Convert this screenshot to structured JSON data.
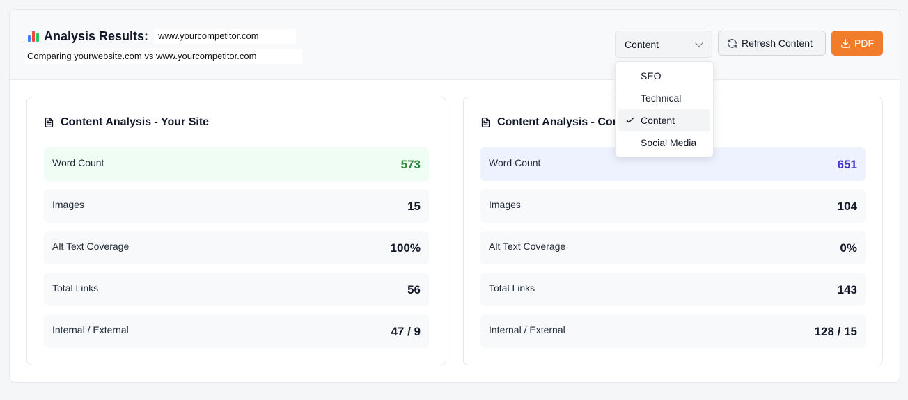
{
  "header": {
    "title": "Analysis Results:",
    "title_url": "www.yourcompetitor.com",
    "subtitle": "Comparing yourwebsite.com vs www.yourcompetitor.com",
    "title_icon": "bar-chart-icon"
  },
  "toolbar": {
    "select_value": "Content",
    "refresh_label": "Refresh Content",
    "pdf_label": "PDF",
    "accent_color": "#f07c2c"
  },
  "dropdown": {
    "options": [
      {
        "label": "SEO",
        "selected": false
      },
      {
        "label": "Technical",
        "selected": false
      },
      {
        "label": "Content",
        "selected": true
      },
      {
        "label": "Social Media",
        "selected": false
      }
    ]
  },
  "panels": [
    {
      "title": "Content Analysis - Your Site",
      "rows": [
        {
          "label": "Word Count",
          "value": "573"
        },
        {
          "label": "Images",
          "value": "15"
        },
        {
          "label": "Alt Text Coverage",
          "value": "100%"
        },
        {
          "label": "Total Links",
          "value": "56"
        },
        {
          "label": "Internal / External",
          "value": "47 / 9"
        }
      ]
    },
    {
      "title": "Content Analysis - Competitor",
      "rows": [
        {
          "label": "Word Count",
          "value": "651"
        },
        {
          "label": "Images",
          "value": "104"
        },
        {
          "label": "Alt Text Coverage",
          "value": "0%"
        },
        {
          "label": "Total Links",
          "value": "143"
        },
        {
          "label": "Internal / External",
          "value": "128 / 15"
        }
      ]
    }
  ],
  "colors": {
    "your_site_highlight": "#2f8a3e",
    "competitor_highlight": "#4338ca"
  }
}
